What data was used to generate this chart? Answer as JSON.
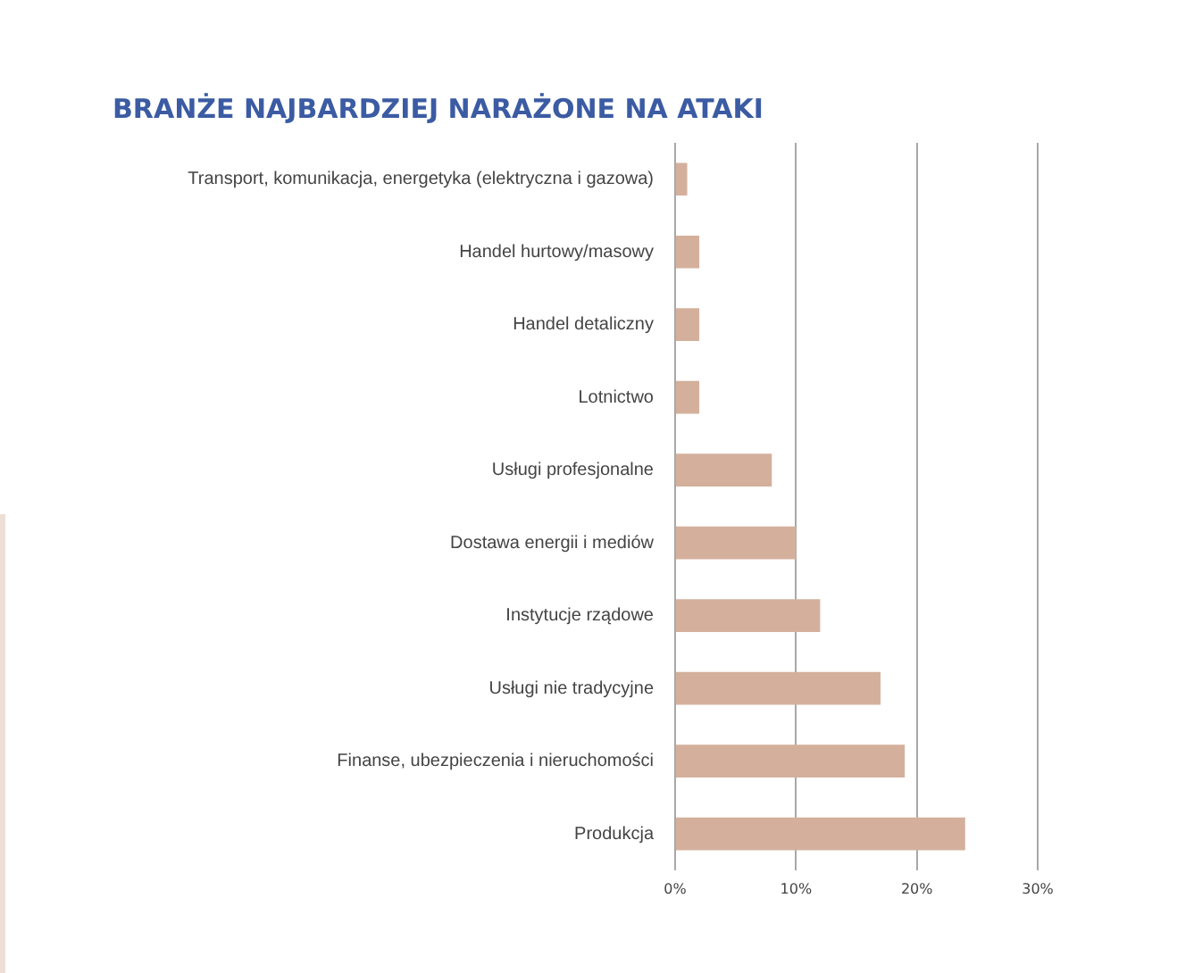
{
  "chart_data": {
    "type": "bar",
    "orientation": "horizontal",
    "title": "BRANŻE NAJBARDZIEJ NARAŻONE NA ATAKI",
    "categories": [
      "Transport, komunikacja, energetyka (elektryczna i gazowa)",
      "Handel hurtowy/masowy",
      "Handel detaliczny",
      "Lotnictwo",
      "Usługi profesjonalne",
      "Dostawa energii i mediów",
      "Instytucje rządowe",
      "Usługi nie tradycyjne",
      "Finanse, ubezpieczenia i nieruchomości",
      "Produkcja"
    ],
    "values": [
      1,
      2,
      2,
      2,
      8,
      10,
      12,
      17,
      19,
      24
    ],
    "color": "#d4b09c",
    "xlim": [
      0,
      30
    ],
    "xticks": [
      {
        "value": 0,
        "label": "0%"
      },
      {
        "value": 10,
        "label": "10%"
      },
      {
        "value": 20,
        "label": "20%"
      },
      {
        "value": 30,
        "label": "30%"
      }
    ],
    "grid": "x",
    "legend": false
  }
}
